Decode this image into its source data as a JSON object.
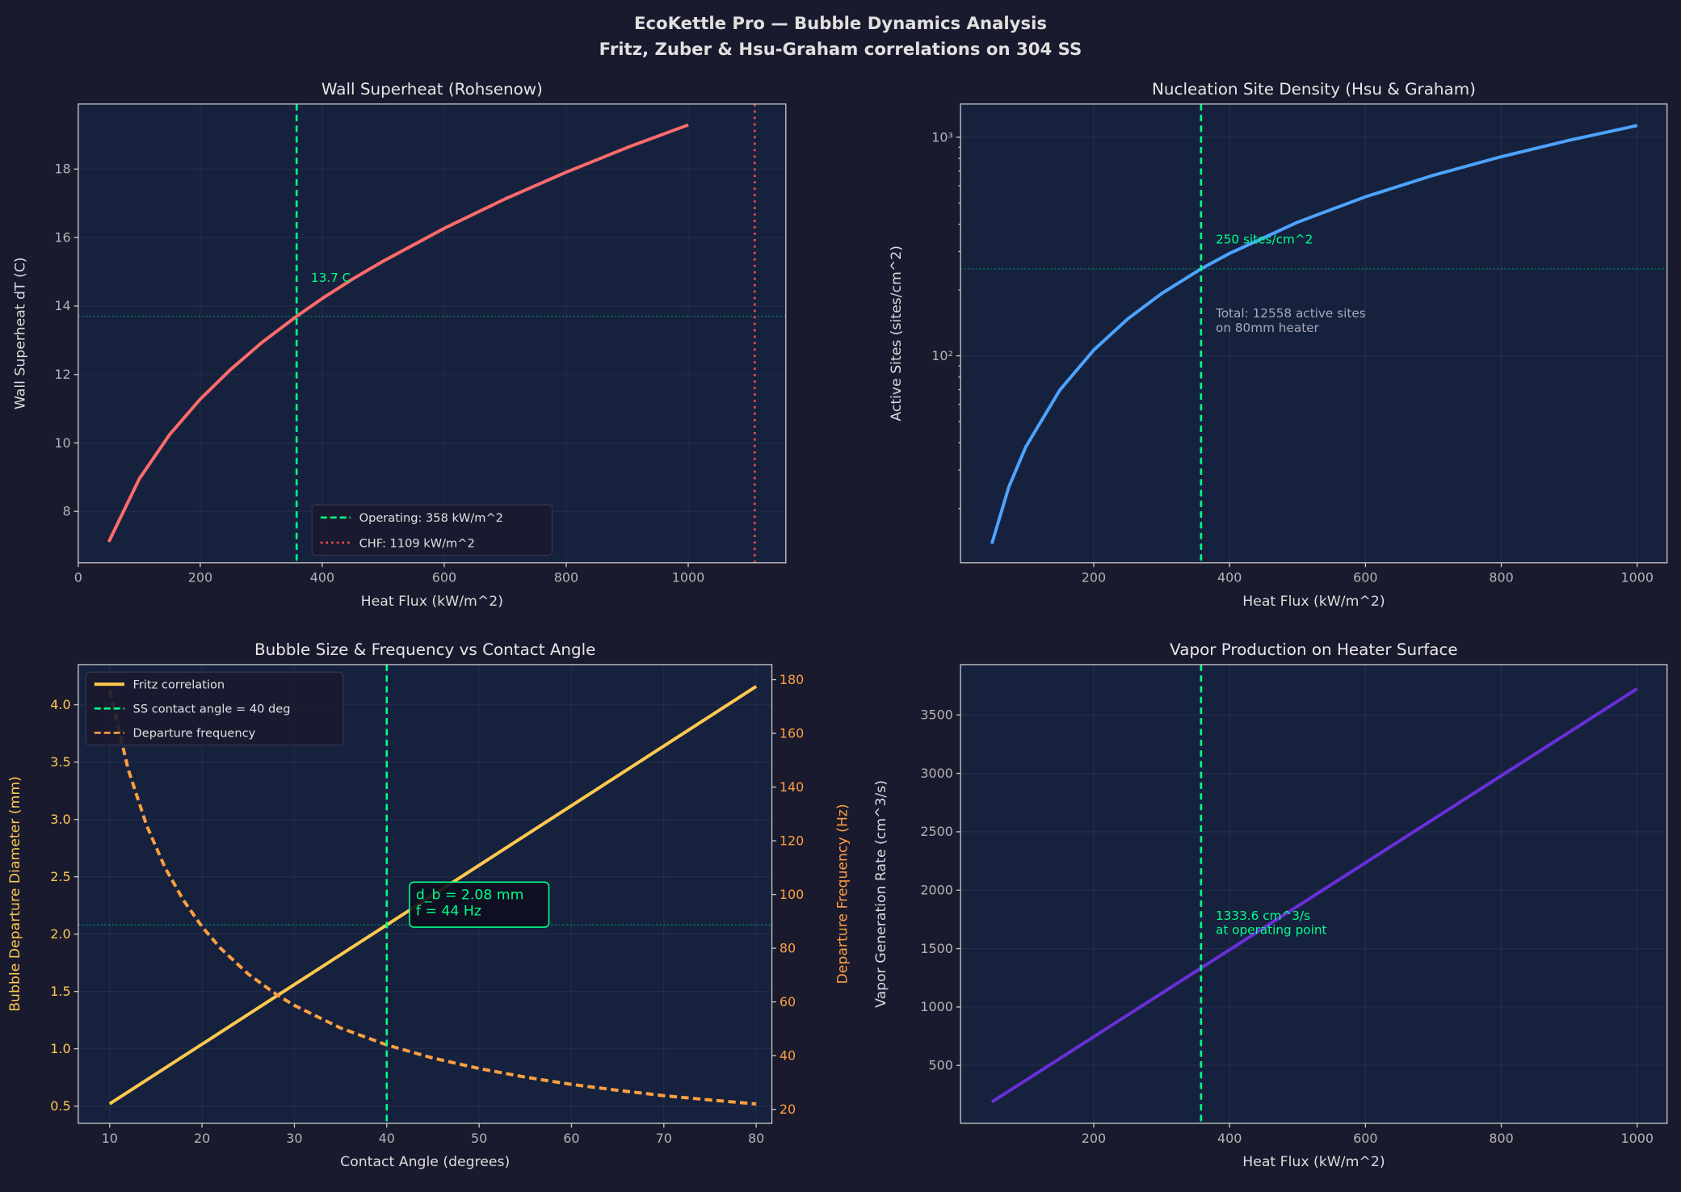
{
  "figure": {
    "title_line1": "EcoKettle Pro — Bubble Dynamics Analysis",
    "title_line2": "Fritz, Zuber & Hsu-Graham correlations on 304 SS"
  },
  "colors": {
    "background": "#1a1a2e",
    "axes_bg": "#16213e",
    "spine": "#c8c8c8",
    "tick_text": "#b4b4b4",
    "label_text": "#dcdcdc",
    "operating": "#00ff88",
    "chf": "#ff4d4d",
    "superheat": "#ff6b6b",
    "sites": "#4da3ff",
    "fritz": "#ffc94d",
    "frequency": "#ff9f40",
    "vapor": "#6a2fd8",
    "note_gray": "#a8a8b8"
  },
  "chart_data": [
    {
      "id": "wall-superheat",
      "type": "line",
      "title": "Wall Superheat (Rohsenow)",
      "xlabel": "Heat Flux (kW/m^2)",
      "ylabel": "Wall Superheat dT (C)",
      "xlim": [
        0,
        1160
      ],
      "ylim": [
        6.5,
        19.9
      ],
      "yscale": "linear",
      "xticks": [
        0,
        200,
        400,
        600,
        800,
        1000
      ],
      "yticks": [
        8,
        10,
        12,
        14,
        16,
        18
      ],
      "grid": true,
      "series": [
        {
          "name": "Wall superheat",
          "color": "#ff6b6b",
          "style": "solid",
          "axis": "left",
          "x": [
            50,
            100,
            150,
            200,
            250,
            300,
            358,
            400,
            450,
            500,
            600,
            700,
            800,
            900,
            1000
          ],
          "y": [
            7.11,
            8.95,
            10.25,
            11.28,
            12.15,
            12.92,
            13.7,
            14.22,
            14.79,
            15.31,
            16.27,
            17.13,
            17.91,
            18.63,
            19.29
          ]
        }
      ],
      "vlines": [
        {
          "x": 358,
          "color": "#00ff88",
          "style": "dashed"
        },
        {
          "x": 1109,
          "color": "#ff4d4d",
          "style": "dotted"
        }
      ],
      "hlines": [
        {
          "y": 13.7,
          "color": "#00c878",
          "style": "dotted"
        }
      ],
      "notes": [
        {
          "lines": [
            "13.7 C"
          ],
          "color": "#00ff88"
        }
      ],
      "legend": {
        "loc": "lower center",
        "entries": [
          {
            "label": "Operating: 358 kW/m^2",
            "color": "#00ff88",
            "style": "dashed"
          },
          {
            "label": "CHF: 1109 kW/m^2",
            "color": "#ff4d4d",
            "style": "dotted"
          }
        ]
      }
    },
    {
      "id": "nucleation-site-density",
      "type": "line",
      "title": "Nucleation Site Density (Hsu & Graham)",
      "xlabel": "Heat Flux (kW/m^2)",
      "ylabel": "Active Sites (sites/cm^2)",
      "xlim": [
        4,
        1044
      ],
      "ylim": [
        11.3,
        1419
      ],
      "yscale": "log",
      "xticks": [
        200,
        400,
        600,
        800,
        1000
      ],
      "yticks": [
        100,
        1000
      ],
      "yticklabels": [
        "10²",
        "10³"
      ],
      "yminor": [
        20,
        30,
        40,
        50,
        60,
        70,
        80,
        90,
        200,
        300,
        400,
        500,
        600,
        700,
        800,
        900
      ],
      "grid": true,
      "series": [
        {
          "name": "Active sites",
          "color": "#4da3ff",
          "style": "solid",
          "axis": "left",
          "x": [
            50,
            75,
            100,
            150,
            200,
            250,
            300,
            358,
            400,
            500,
            600,
            700,
            800,
            900,
            1000
          ],
          "y": [
            13.8,
            25.1,
            38.3,
            69.6,
            106.2,
            147.5,
            192.8,
            250,
            294.3,
            408.5,
            534,
            670,
            815,
            969,
            1132
          ]
        }
      ],
      "vlines": [
        {
          "x": 358,
          "color": "#00ff88",
          "style": "dashed"
        }
      ],
      "hlines": [
        {
          "y": 250,
          "color": "#00c878",
          "style": "dotted"
        }
      ],
      "notes": [
        {
          "lines": [
            "250 sites/cm^2"
          ],
          "color": "#00ff88"
        },
        {
          "lines": [
            "Total: 12558 active sites",
            "on 80mm heater"
          ],
          "color": "#a8a8b8"
        }
      ]
    },
    {
      "id": "bubble-size-frequency",
      "type": "line",
      "title": "Bubble Size & Frequency vs Contact Angle",
      "xlabel": "Contact Angle (degrees)",
      "ylabel": "Bubble Departure Diameter (mm)",
      "ylabel_color": "#ffc94d",
      "ylabel2": "Departure Frequency (Hz)",
      "ylabel2_color": "#ff9f40",
      "xlim": [
        6.6,
        81.7
      ],
      "ylim": [
        0.35,
        4.35
      ],
      "ylim2": [
        14.8,
        185.6
      ],
      "yscale": "linear",
      "xticks": [
        10,
        20,
        30,
        40,
        50,
        60,
        70,
        80
      ],
      "yticks": [
        0.5,
        1.0,
        1.5,
        2.0,
        2.5,
        3.0,
        3.5,
        4.0
      ],
      "yticklabels": [
        "0.5",
        "1.0",
        "1.5",
        "2.0",
        "2.5",
        "3.0",
        "3.5",
        "4.0"
      ],
      "yticks2": [
        20,
        40,
        60,
        80,
        100,
        120,
        140,
        160,
        180
      ],
      "grid": true,
      "series": [
        {
          "name": "Fritz correlation",
          "color": "#ffc94d",
          "style": "solid",
          "axis": "left",
          "x": [
            10,
            80
          ],
          "y": [
            0.52,
            4.16
          ]
        },
        {
          "name": "Departure frequency",
          "color": "#ff9f40",
          "style": "dashed",
          "axis": "right",
          "x": [
            10,
            12,
            14,
            16,
            18,
            20,
            22,
            25,
            28,
            30,
            35,
            40,
            45,
            50,
            55,
            60,
            65,
            70,
            75,
            80
          ],
          "y": [
            176,
            146.7,
            125.7,
            110,
            97.8,
            88,
            80,
            70.4,
            62.9,
            58.7,
            50.3,
            44,
            39.1,
            35.2,
            32,
            29.3,
            27.1,
            25.1,
            23.5,
            22
          ]
        }
      ],
      "vlines": [
        {
          "x": 40,
          "color": "#00ff88",
          "style": "dashed"
        }
      ],
      "hlines": [
        {
          "y": 2.08,
          "color": "#00c878",
          "style": "dotted"
        }
      ],
      "notes": [
        {
          "lines": [
            "d_b = 2.08 mm",
            "f = 44 Hz"
          ],
          "color": "#00ff88",
          "boxed": true
        }
      ],
      "legend": {
        "loc": "upper left",
        "entries": [
          {
            "label": "Fritz correlation",
            "color": "#ffc94d",
            "style": "solid"
          },
          {
            "label": "SS contact angle = 40 deg",
            "color": "#00ff88",
            "style": "dashed"
          },
          {
            "label": "Departure frequency",
            "color": "#ff9f40",
            "style": "dashed"
          }
        ]
      }
    },
    {
      "id": "vapor-production",
      "type": "line",
      "title": "Vapor Production on Heater Surface",
      "xlabel": "Heat Flux (kW/m^2)",
      "ylabel": "Vapor Generation Rate (cm^3/s)",
      "xlim": [
        4,
        1044
      ],
      "ylim": [
        4,
        3931
      ],
      "yscale": "linear",
      "xticks": [
        200,
        400,
        600,
        800,
        1000
      ],
      "yticks": [
        500,
        1000,
        1500,
        2000,
        2500,
        3000,
        3500
      ],
      "grid": true,
      "series": [
        {
          "name": "Vapor generation",
          "color": "#6a2fd8",
          "style": "solid",
          "axis": "left",
          "x": [
            50,
            358,
            1000
          ],
          "y": [
            186.3,
            1333.6,
            3725.1
          ]
        }
      ],
      "vlines": [
        {
          "x": 358,
          "color": "#00ff88",
          "style": "dashed"
        }
      ],
      "hlines": [],
      "notes": [
        {
          "lines": [
            "1333.6 cm^3/s",
            "at operating point"
          ],
          "color": "#00ff88"
        }
      ]
    }
  ]
}
